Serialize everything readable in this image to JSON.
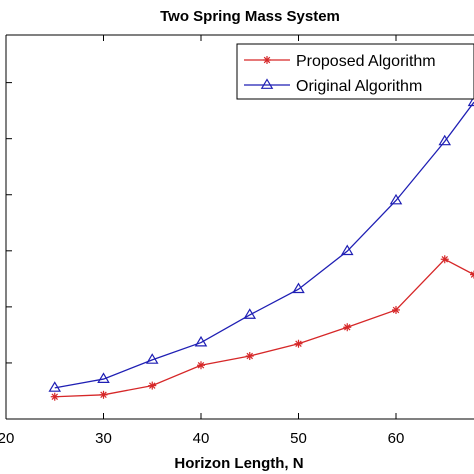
{
  "chart_data": {
    "type": "line",
    "title": "Two Spring Mass System",
    "xlabel": "Horizon Length, N",
    "ylabel": "",
    "x_ticks": [
      "20",
      "30",
      "40",
      "50",
      "60"
    ],
    "xlim": [
      20,
      68
    ],
    "ylim": [
      0,
      1
    ],
    "grid": false,
    "legend_position": "top-right",
    "series": [
      {
        "name": "Proposed Algorithm",
        "color": "#d62728",
        "marker": "asterisk",
        "x": [
          25,
          30,
          35,
          40,
          45,
          50,
          55,
          60,
          65,
          68
        ],
        "y": [
          0.058,
          0.063,
          0.087,
          0.14,
          0.164,
          0.196,
          0.239,
          0.284,
          0.416,
          0.376
        ]
      },
      {
        "name": "Original Algorithm",
        "color": "#1f1fb4",
        "marker": "triangle",
        "x": [
          25,
          30,
          35,
          40,
          45,
          50,
          55,
          60,
          65,
          68
        ],
        "y": [
          0.081,
          0.104,
          0.154,
          0.199,
          0.271,
          0.338,
          0.437,
          0.569,
          0.723,
          0.825
        ]
      }
    ]
  }
}
